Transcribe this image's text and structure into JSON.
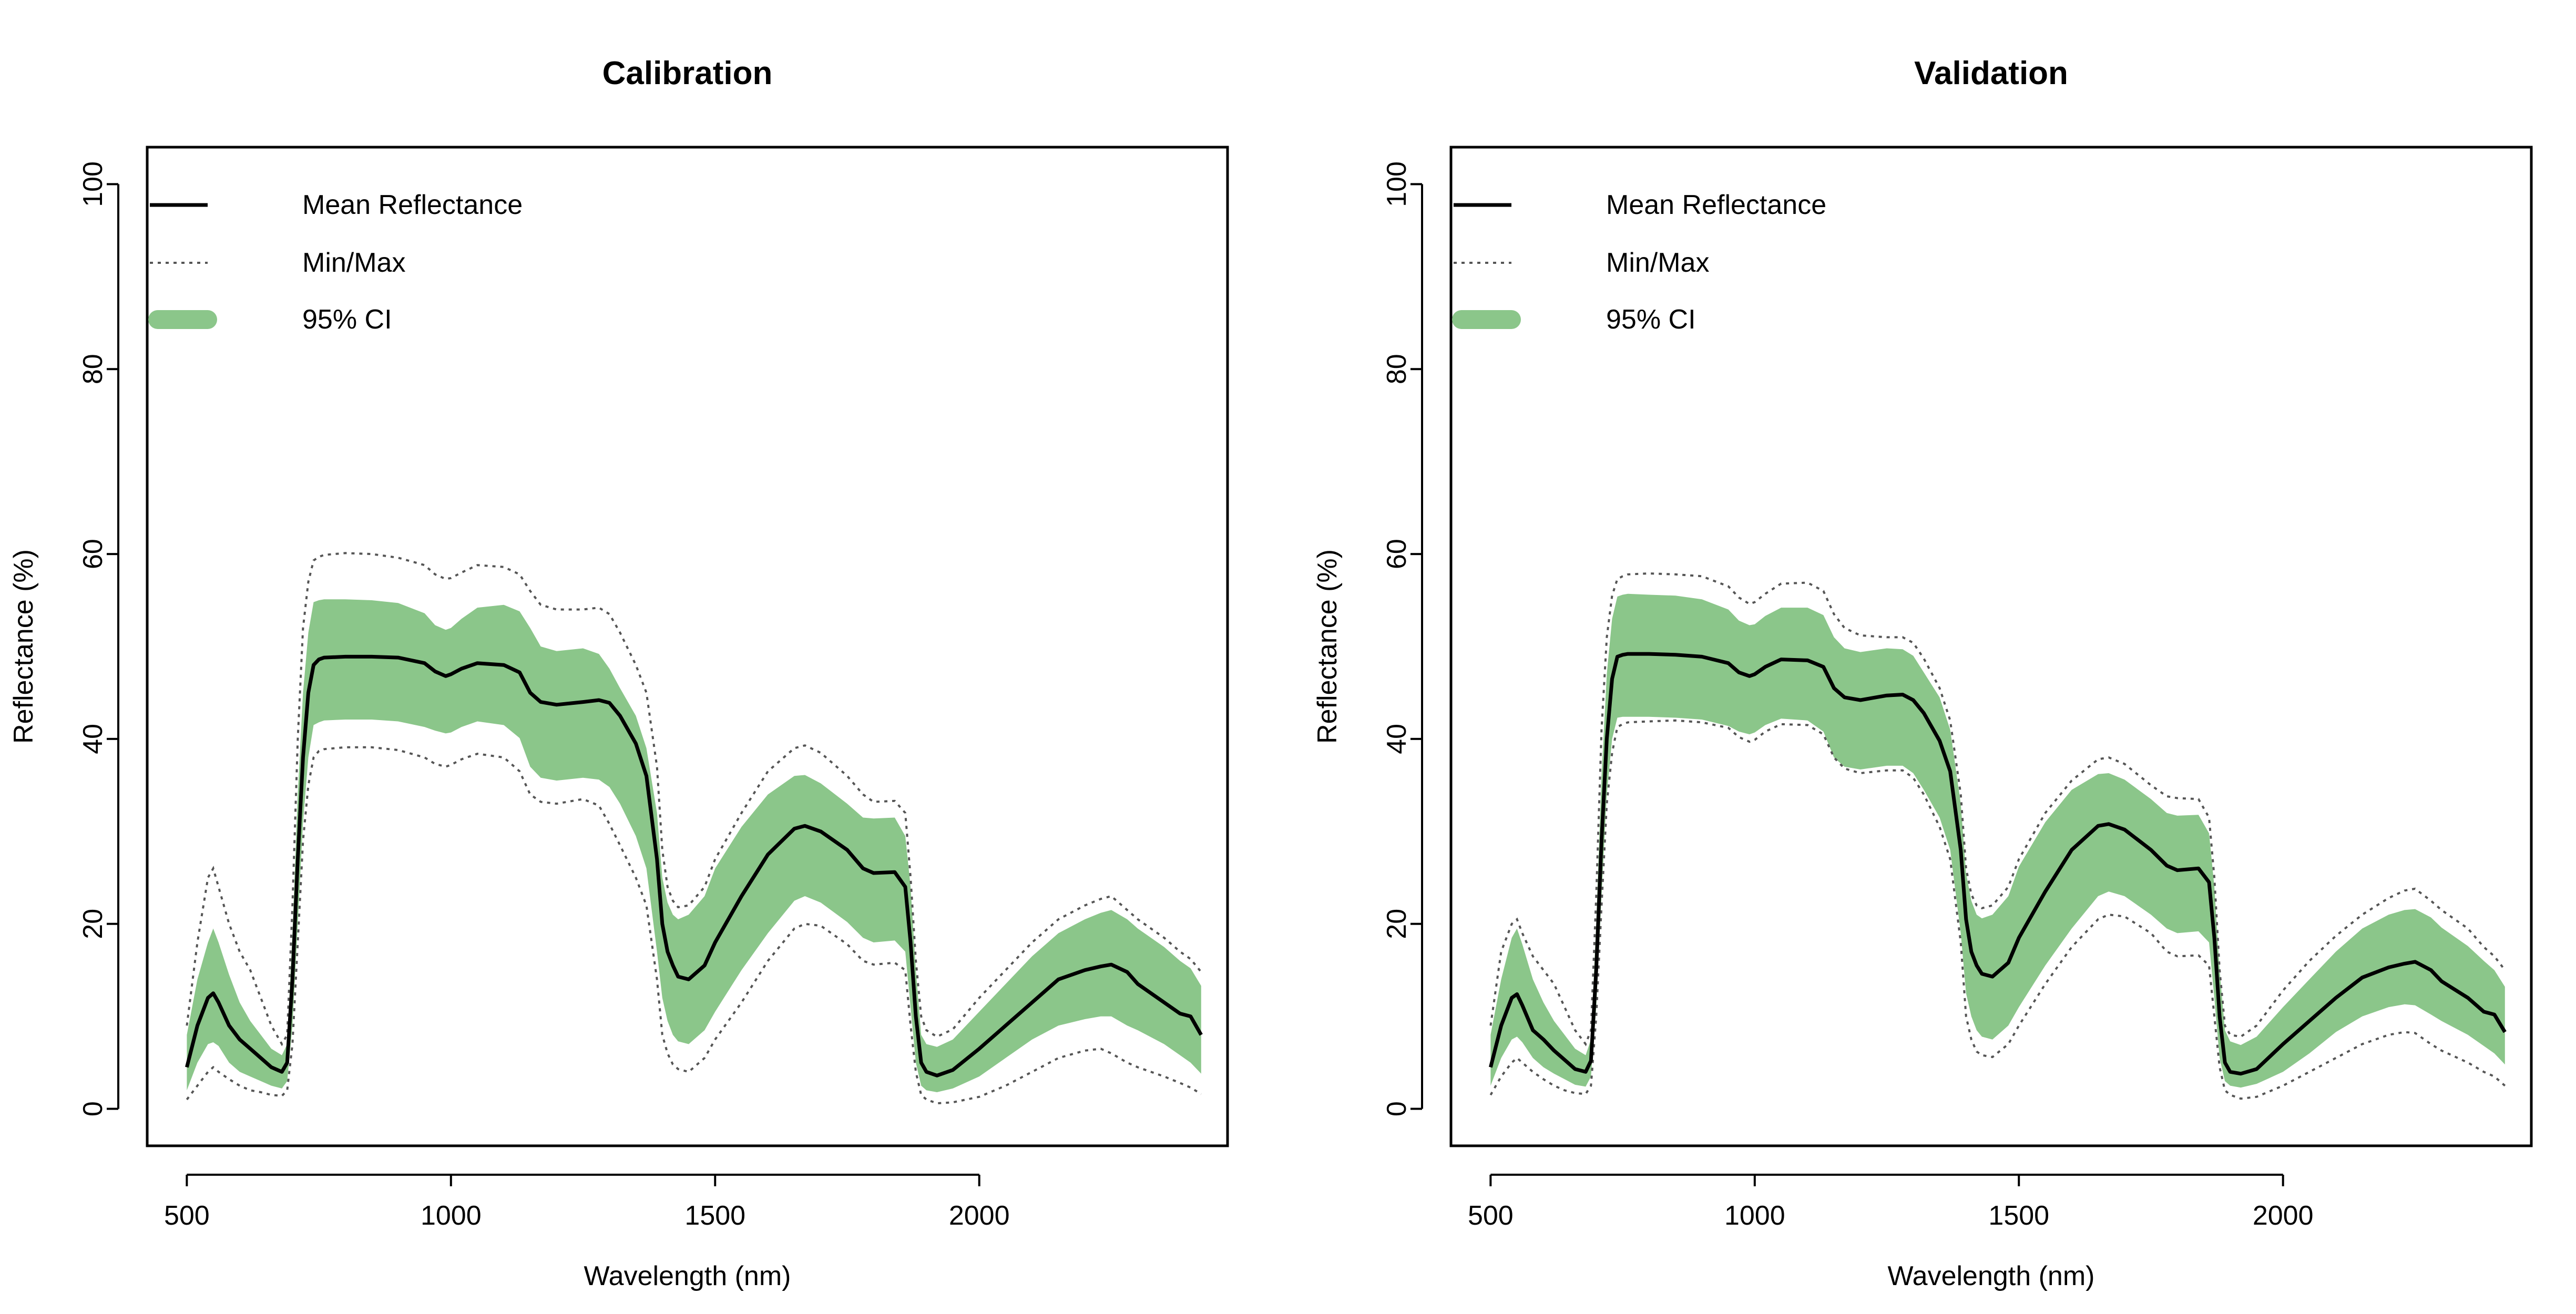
{
  "chart_data": [
    {
      "type": "line",
      "title": "Calibration",
      "xlabel": "Wavelength (nm)",
      "ylabel": "Reflectance (%)",
      "xlim": [
        425,
        2470
      ],
      "ylim": [
        -4,
        104
      ],
      "xticks": [
        500,
        1000,
        1500,
        2000
      ],
      "yticks": [
        0,
        20,
        40,
        60,
        80,
        100
      ],
      "grid": false,
      "legend_position": "top-left",
      "legend": [
        {
          "label": "Mean Reflectance",
          "style": "solid"
        },
        {
          "label": "Min/Max",
          "style": "dotted"
        },
        {
          "label": "95% CI",
          "style": "band"
        }
      ],
      "x": [
        500,
        520,
        540,
        550,
        560,
        580,
        600,
        620,
        640,
        660,
        680,
        690,
        700,
        710,
        720,
        730,
        740,
        750,
        760,
        800,
        850,
        900,
        950,
        970,
        990,
        1000,
        1020,
        1050,
        1100,
        1130,
        1150,
        1170,
        1200,
        1250,
        1280,
        1300,
        1320,
        1350,
        1370,
        1390,
        1400,
        1410,
        1420,
        1430,
        1450,
        1480,
        1500,
        1550,
        1600,
        1650,
        1670,
        1700,
        1750,
        1780,
        1800,
        1840,
        1860,
        1870,
        1880,
        1890,
        1900,
        1920,
        1950,
        2000,
        2050,
        2100,
        2150,
        2200,
        2230,
        2250,
        2280,
        2300,
        2350,
        2380,
        2400,
        2420
      ],
      "series": [
        {
          "name": "Mean Reflectance",
          "style": "solid",
          "color": "#000000",
          "values": [
            4.5,
            9,
            12,
            12.5,
            11.5,
            9,
            7.5,
            6.5,
            5.5,
            4.5,
            4,
            5,
            14,
            27,
            38,
            45,
            48,
            48.6,
            48.8,
            48.9,
            48.9,
            48.8,
            48.2,
            47.3,
            46.8,
            47,
            47.6,
            48.2,
            48,
            47.2,
            45,
            44,
            43.7,
            44,
            44.2,
            43.9,
            42.5,
            39.5,
            36,
            27,
            20,
            17,
            15.5,
            14.3,
            14,
            15.5,
            18,
            23,
            27.5,
            30.3,
            30.6,
            30,
            28,
            26,
            25.5,
            25.6,
            24,
            18,
            10,
            5,
            4,
            3.6,
            4.2,
            6.5,
            9,
            11.5,
            14,
            15,
            15.4,
            15.6,
            14.8,
            13.5,
            11.5,
            10.3,
            10,
            8
          ]
        },
        {
          "name": "Min/Max",
          "style": "dotted",
          "color": "#555555",
          "lower": [
            1,
            2.5,
            4,
            4.5,
            4,
            3.2,
            2.5,
            2,
            1.8,
            1.5,
            1.4,
            2,
            7,
            18,
            29,
            35,
            38,
            38.7,
            38.9,
            39.1,
            39.1,
            38.8,
            38,
            37.3,
            37,
            37.2,
            37.8,
            38.4,
            38,
            36.5,
            34,
            33.2,
            33,
            33.5,
            32.8,
            30.8,
            28.5,
            25,
            22,
            14,
            8,
            6,
            4.8,
            4.3,
            4,
            5.5,
            7.5,
            11.5,
            16,
            19.5,
            20,
            19.8,
            17.8,
            16,
            15.6,
            15.8,
            15,
            9,
            4,
            1.5,
            1,
            0.6,
            0.7,
            1.3,
            2.5,
            4,
            5.5,
            6.3,
            6.5,
            6,
            5,
            4.5,
            3.5,
            2.8,
            2.3,
            1.6
          ],
          "upper": [
            9,
            18,
            25,
            26,
            24,
            20,
            17,
            15,
            12,
            9,
            7,
            8,
            22,
            40,
            52,
            57,
            59.3,
            59.7,
            59.9,
            60.1,
            60,
            59.6,
            58.8,
            57.8,
            57.3,
            57.4,
            58,
            58.8,
            58.6,
            57.8,
            56,
            54.5,
            54,
            54,
            54.2,
            53.5,
            51.5,
            48,
            45,
            37,
            28,
            24,
            22.5,
            21.8,
            22,
            24,
            27,
            32,
            36.5,
            39,
            39.3,
            38.5,
            36,
            34,
            33.2,
            33.3,
            32,
            25,
            16,
            10,
            8.5,
            7.8,
            8.6,
            12,
            15,
            18,
            20.5,
            22,
            22.7,
            23,
            21.5,
            20.5,
            18.5,
            17,
            16.2,
            14.8
          ]
        },
        {
          "name": "95% CI",
          "style": "band",
          "color": "#8bc68a",
          "lower": [
            2,
            5,
            7,
            7.2,
            6.8,
            5,
            4,
            3.5,
            3,
            2.5,
            2.2,
            3,
            9,
            20,
            31,
            38,
            41.5,
            41.8,
            42,
            42.1,
            42.1,
            41.9,
            41.3,
            40.9,
            40.6,
            40.7,
            41.3,
            41.9,
            41.5,
            40.1,
            37,
            35.8,
            35.5,
            35.8,
            35.6,
            34.8,
            33,
            29.5,
            26,
            17,
            12,
            9.5,
            8,
            7.3,
            7,
            8.5,
            10.5,
            15,
            19,
            22.5,
            23,
            22.3,
            20.2,
            18.5,
            18,
            18.2,
            17,
            11,
            5,
            2.5,
            2,
            1.8,
            2.2,
            3.5,
            5.5,
            7.5,
            9,
            9.7,
            10,
            10,
            9,
            8.5,
            7,
            5.8,
            5,
            3.8
          ],
          "upper": [
            8,
            14,
            18,
            19.5,
            18,
            14.5,
            11.5,
            9.5,
            8,
            6.5,
            5.8,
            7,
            19,
            34,
            45,
            51.5,
            54.8,
            55,
            55.1,
            55.1,
            55,
            54.7,
            53.6,
            52.3,
            51.8,
            52,
            53,
            54.2,
            54.5,
            53.8,
            52,
            50,
            49.5,
            49.8,
            49.2,
            47.6,
            45.5,
            42.5,
            39,
            32,
            25,
            22.3,
            21,
            20.5,
            21,
            23,
            26,
            30.5,
            34,
            36,
            36.1,
            35.2,
            33,
            31.5,
            31.4,
            31.5,
            29.5,
            24,
            15,
            8,
            7,
            6.7,
            7.5,
            10.5,
            13.5,
            16.5,
            19,
            20.5,
            21.2,
            21.5,
            20.5,
            19.5,
            17.5,
            16,
            15.2,
            13.3
          ]
        }
      ]
    },
    {
      "type": "line",
      "title": "Validation",
      "xlabel": "Wavelength (nm)",
      "ylabel": "Reflectance (%)",
      "xlim": [
        425,
        2470
      ],
      "ylim": [
        -4,
        104
      ],
      "xticks": [
        500,
        1000,
        1500,
        2000
      ],
      "yticks": [
        0,
        20,
        40,
        60,
        80,
        100
      ],
      "grid": false,
      "legend_position": "top-left",
      "legend": [
        {
          "label": "Mean Reflectance",
          "style": "solid"
        },
        {
          "label": "Min/Max",
          "style": "dotted"
        },
        {
          "label": "95% CI",
          "style": "band"
        }
      ],
      "x": [
        500,
        520,
        540,
        550,
        560,
        580,
        600,
        620,
        640,
        660,
        680,
        690,
        700,
        710,
        720,
        730,
        740,
        750,
        760,
        800,
        850,
        900,
        950,
        970,
        990,
        1000,
        1020,
        1050,
        1100,
        1130,
        1150,
        1170,
        1200,
        1250,
        1280,
        1300,
        1320,
        1350,
        1370,
        1390,
        1400,
        1410,
        1420,
        1430,
        1450,
        1480,
        1500,
        1550,
        1600,
        1650,
        1670,
        1700,
        1750,
        1780,
        1800,
        1840,
        1860,
        1870,
        1880,
        1890,
        1900,
        1920,
        1950,
        2000,
        2050,
        2100,
        2150,
        2200,
        2230,
        2250,
        2280,
        2300,
        2350,
        2380,
        2400,
        2420
      ],
      "series": [
        {
          "name": "Mean Reflectance",
          "style": "solid",
          "color": "#000000",
          "values": [
            4.5,
            9,
            12,
            12.4,
            11.2,
            8.5,
            7.5,
            6.3,
            5.3,
            4.3,
            4,
            5.2,
            15,
            29,
            40,
            46.5,
            48.9,
            49.1,
            49.2,
            49.2,
            49.1,
            48.9,
            48.2,
            47.2,
            46.8,
            47,
            47.8,
            48.6,
            48.5,
            47.8,
            45.5,
            44.5,
            44.2,
            44.7,
            44.8,
            44.2,
            42.8,
            39.8,
            36.5,
            28,
            20.5,
            17,
            15.5,
            14.6,
            14.3,
            15.8,
            18.5,
            23.5,
            28,
            30.6,
            30.8,
            30.2,
            28,
            26.3,
            25.8,
            26,
            24.5,
            18.5,
            10,
            5,
            4,
            3.8,
            4.3,
            7,
            9.5,
            12,
            14.2,
            15.3,
            15.7,
            15.9,
            15,
            13.8,
            12,
            10.5,
            10.2,
            8.3
          ]
        },
        {
          "name": "Min/Max",
          "style": "dotted",
          "color": "#555555",
          "lower": [
            1.5,
            3.5,
            5,
            5.5,
            5,
            4,
            3.2,
            2.5,
            2,
            1.7,
            1.6,
            2.5,
            10,
            22,
            33,
            38.5,
            41.3,
            41.6,
            41.8,
            41.9,
            42,
            41.8,
            41.2,
            40.2,
            39.7,
            39.9,
            40.8,
            41.6,
            41.5,
            40.5,
            38,
            36.8,
            36.3,
            36.6,
            36.6,
            35.8,
            34,
            30.5,
            27,
            18,
            10,
            7.5,
            6.2,
            5.8,
            5.6,
            7,
            9,
            13.5,
            17.5,
            20.5,
            21,
            20.8,
            19,
            17,
            16.5,
            16.6,
            15.5,
            10,
            4.5,
            2,
            1.5,
            1.1,
            1.3,
            2.5,
            4,
            5.5,
            7,
            8,
            8.3,
            8.2,
            7,
            6.3,
            5,
            4,
            3.5,
            2.5
          ],
          "upper": [
            9,
            17,
            20,
            20.5,
            19,
            16.5,
            15,
            13.5,
            11,
            8.5,
            7,
            8.5,
            23,
            41,
            51,
            55.5,
            57.3,
            57.6,
            57.8,
            57.9,
            57.8,
            57.6,
            56.5,
            55.3,
            54.6,
            54.8,
            55.7,
            56.8,
            56.9,
            56,
            53.5,
            52,
            51.2,
            51,
            51,
            50.4,
            48.7,
            45.5,
            42,
            34,
            26,
            23.2,
            22,
            21.7,
            22,
            24,
            27,
            32,
            35.5,
            37.8,
            38,
            37.3,
            35,
            33.8,
            33.6,
            33.5,
            31.5,
            25,
            15,
            9,
            8,
            7.8,
            9,
            12.8,
            16,
            18.7,
            21,
            22.8,
            23.6,
            23.8,
            22.5,
            21.5,
            19.5,
            17.5,
            16.5,
            15
          ]
        },
        {
          "name": "95% CI",
          "style": "band",
          "color": "#8bc68a",
          "lower": [
            2.5,
            5.5,
            7.5,
            7.8,
            7.2,
            5.5,
            4.5,
            3.8,
            3.2,
            2.6,
            2.4,
            3.5,
            11,
            23,
            34,
            40,
            42.3,
            42.4,
            42.4,
            42.4,
            42.3,
            42.1,
            41.4,
            40.8,
            40.5,
            40.7,
            41.5,
            42.2,
            42,
            40.8,
            38,
            37,
            36.7,
            37.1,
            37.1,
            36.3,
            34.5,
            31.5,
            28,
            19,
            12.5,
            10,
            8.5,
            7.8,
            7.5,
            9,
            11,
            15.5,
            19.5,
            23,
            23.5,
            23,
            21,
            19.5,
            19,
            19.2,
            18,
            12,
            5.5,
            3,
            2.5,
            2.3,
            2.7,
            4,
            6,
            8.3,
            10,
            11,
            11.3,
            11.2,
            10.2,
            9.5,
            8,
            6.8,
            6,
            4.8
          ],
          "upper": [
            8,
            14,
            18.5,
            19.5,
            17.8,
            14,
            11.5,
            9.5,
            8,
            6.5,
            5.8,
            7.5,
            20,
            36,
            47,
            53,
            55.4,
            55.6,
            55.7,
            55.6,
            55.5,
            55.1,
            54,
            52.8,
            52.3,
            52.4,
            53.3,
            54.2,
            54.2,
            53.4,
            51,
            49.8,
            49.4,
            49.8,
            49.7,
            49,
            47.2,
            44.5,
            41,
            33,
            25.5,
            22.5,
            21,
            20.6,
            21,
            23,
            26.2,
            31,
            34.5,
            36.2,
            36.3,
            35.6,
            33.5,
            32,
            31.7,
            31.8,
            29.8,
            24,
            15,
            8.5,
            7.3,
            6.9,
            7.8,
            11,
            14,
            17,
            19.5,
            21,
            21.5,
            21.6,
            20.7,
            19.6,
            17.6,
            16,
            15,
            13.2
          ]
        }
      ]
    }
  ]
}
